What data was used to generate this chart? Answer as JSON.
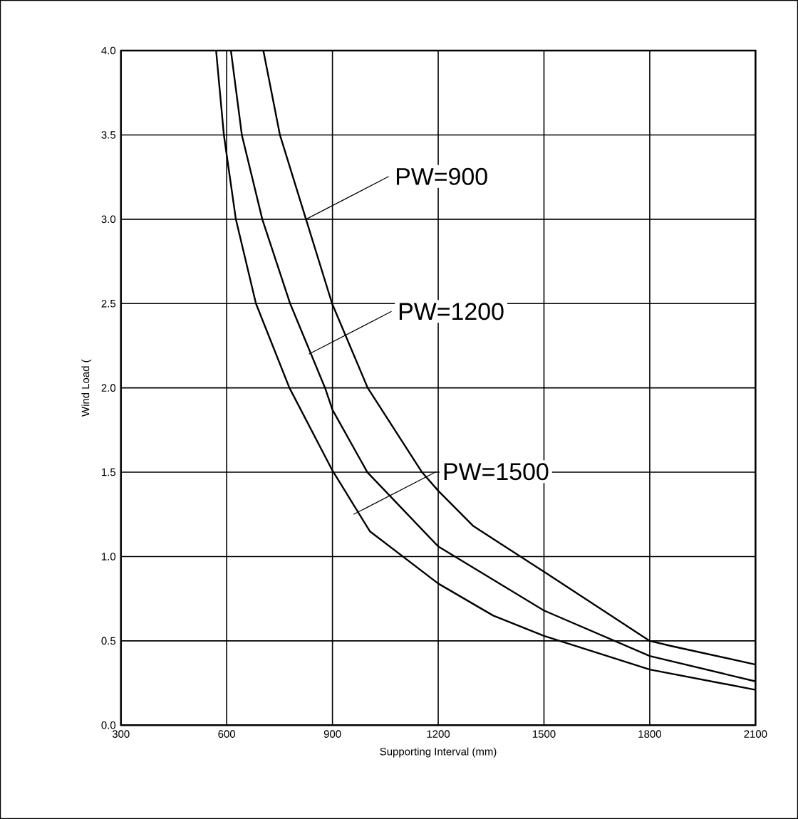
{
  "chart_data": {
    "type": "line",
    "xlabel": "Supporting Interval (mm)",
    "ylabel": "Wind Load (",
    "xlim": [
      300,
      2100
    ],
    "xticks": [
      300,
      600,
      900,
      1200,
      1500,
      1800,
      2100
    ],
    "ylim": [
      0,
      4.0
    ],
    "yticks": [
      {
        "value": 0,
        "label": "0.0"
      },
      {
        "value": 0.5,
        "label": "0.5"
      },
      {
        "value": 1,
        "label": "1.0"
      },
      {
        "value": 1.5,
        "label": "1.5"
      },
      {
        "value": 2,
        "label": "2.0"
      },
      {
        "value": 2.5,
        "label": "2.5"
      },
      {
        "value": 3,
        "label": "3.0"
      },
      {
        "value": 3.5,
        "label": "3.5"
      },
      {
        "value": 4,
        "label": "4.0"
      }
    ],
    "grid": true,
    "marker": "none",
    "line_style": "solid",
    "series": [
      {
        "color": "#000000",
        "x": [
          704,
          751,
          825,
          899,
          1000,
          1154,
          1200,
          1300,
          1500,
          1800,
          1860,
          2100
        ],
        "values": [
          4.0,
          3.5,
          3.0,
          2.5,
          2.0,
          1.5,
          1.39,
          1.18,
          0.91,
          0.5,
          0.47,
          0.36
        ]
      },
      {
        "color": "#000000",
        "x": [
          612,
          643,
          701,
          780,
          879,
          900,
          999,
          1200,
          1500,
          1800,
          2100
        ],
        "values": [
          4.0,
          3.5,
          3.0,
          2.5,
          2.0,
          1.87,
          1.5,
          1.06,
          0.68,
          0.41,
          0.26
        ]
      },
      {
        "color": "#000000",
        "x": [
          570,
          592,
          626,
          683,
          778,
          900,
          1006,
          1200,
          1356,
          1500,
          1800,
          2100
        ],
        "values": [
          4.0,
          3.5,
          3.0,
          2.5,
          2.0,
          1.51,
          1.15,
          0.84,
          0.65,
          0.53,
          0.33,
          0.21
        ]
      }
    ],
    "annotations": [
      {
        "text": "PW=900",
        "x": 825,
        "y": 3.0
      },
      {
        "text": "PW=1200",
        "x": 833,
        "y": 2.2
      },
      {
        "text": "PW=1500",
        "x": 960,
        "y": 1.25
      }
    ]
  }
}
